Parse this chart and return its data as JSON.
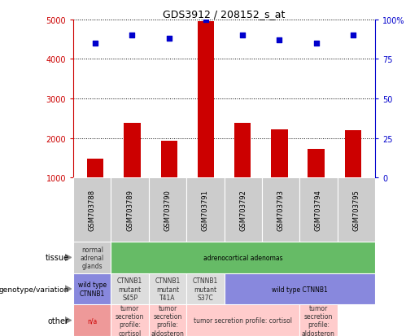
{
  "title": "GDS3912 / 208152_s_at",
  "samples": [
    "GSM703788",
    "GSM703789",
    "GSM703790",
    "GSM703791",
    "GSM703792",
    "GSM703793",
    "GSM703794",
    "GSM703795"
  ],
  "counts": [
    1480,
    2380,
    1930,
    4950,
    2380,
    2220,
    1720,
    2200
  ],
  "percentile_ranks": [
    85,
    90,
    88,
    100,
    90,
    87,
    85,
    90
  ],
  "ylim_left": [
    1000,
    5000
  ],
  "ylim_right": [
    0,
    100
  ],
  "bar_color": "#cc0000",
  "dot_color": "#0000cc",
  "left_axis_color": "#cc0000",
  "right_axis_color": "#0000cc",
  "left_ticks": [
    1000,
    2000,
    3000,
    4000,
    5000
  ],
  "right_ticks": [
    0,
    25,
    50,
    75,
    100
  ],
  "right_tick_labels": [
    "0",
    "25",
    "50",
    "75",
    "100%"
  ],
  "background_color": "#ffffff",
  "tissue_row": {
    "label": "tissue",
    "cells": [
      {
        "text": "normal\nadrenal\nglands",
        "span": 1,
        "color": "#cccccc",
        "text_color": "#333333"
      },
      {
        "text": "adrenocortical adenomas",
        "span": 7,
        "color": "#66bb66",
        "text_color": "#000000"
      }
    ]
  },
  "genotype_row": {
    "label": "genotype/variation",
    "cells": [
      {
        "text": "wild type\nCTNNB1",
        "span": 1,
        "color": "#8888dd",
        "text_color": "#000000"
      },
      {
        "text": "CTNNB1\nmutant\nS45P",
        "span": 1,
        "color": "#dddddd",
        "text_color": "#333333"
      },
      {
        "text": "CTNNB1\nmutant\nT41A",
        "span": 1,
        "color": "#dddddd",
        "text_color": "#333333"
      },
      {
        "text": "CTNNB1\nmutant\nS37C",
        "span": 1,
        "color": "#dddddd",
        "text_color": "#333333"
      },
      {
        "text": "wild type CTNNB1",
        "span": 4,
        "color": "#8888dd",
        "text_color": "#000000"
      }
    ]
  },
  "other_row": {
    "label": "other",
    "cells": [
      {
        "text": "n/a",
        "span": 1,
        "color": "#ee9999",
        "text_color": "#cc0000"
      },
      {
        "text": "tumor\nsecretion\nprofile:\ncortisol",
        "span": 1,
        "color": "#ffcccc",
        "text_color": "#333333"
      },
      {
        "text": "tumor\nsecretion\nprofile:\naldosteron",
        "span": 1,
        "color": "#ffcccc",
        "text_color": "#333333"
      },
      {
        "text": "tumor secretion profile: cortisol",
        "span": 3,
        "color": "#ffcccc",
        "text_color": "#333333"
      },
      {
        "text": "tumor\nsecretion\nprofile:\naldosteron",
        "span": 1,
        "color": "#ffcccc",
        "text_color": "#333333"
      }
    ]
  }
}
